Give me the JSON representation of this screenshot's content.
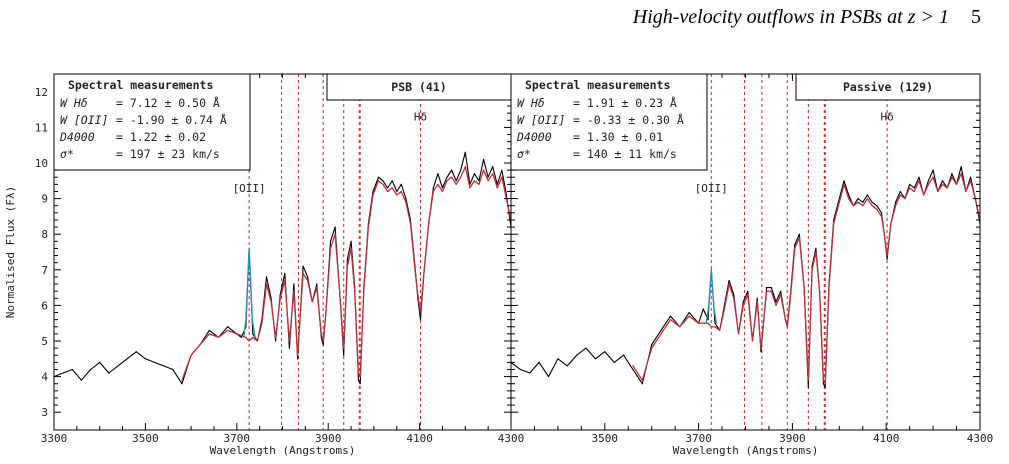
{
  "header": {
    "running_title": "High-velocity outflows in PSBs at z > 1",
    "page_number": "5"
  },
  "chart_data": [
    {
      "type": "line",
      "panel_label": "PSB  (41)",
      "xlabel": "Wavelength (Angstroms)",
      "ylabel": "Normalised Flux (Fλ)",
      "xlim": [
        3300,
        4300
      ],
      "ylim": [
        2.5,
        12.5
      ],
      "x_ticks": [
        "3300",
        "3500",
        "3700",
        "3900",
        "4100",
        "4300"
      ],
      "y_ticks": [
        "3",
        "4",
        "5",
        "6",
        "7",
        "8",
        "9",
        "10",
        "11",
        "12"
      ],
      "measurements": {
        "title": "Spectral measurements",
        "rows": [
          {
            "label": "W Hδ",
            "value": "=  7.12  ± 0.50 Å"
          },
          {
            "label": "W [OII]",
            "value": "= -1.90  ± 0.74 Å"
          },
          {
            "label": "D4000",
            "value": "=  1.22  ± 0.02"
          },
          {
            "label": "σ*",
            "value": "=  197   ± 23 km/s"
          }
        ]
      },
      "line_labels": [
        {
          "text": "[OII]",
          "x": 3727,
          "y": 9.3
        },
        {
          "text": "Hδ",
          "x": 4102,
          "y": 11.3
        }
      ],
      "line_markers": [
        3727,
        3798,
        3835,
        3889,
        3934,
        3968,
        3970,
        4102
      ],
      "series": [
        {
          "color": "#000000",
          "x": [
            3300,
            3320,
            3340,
            3360,
            3380,
            3400,
            3420,
            3440,
            3460,
            3480,
            3500,
            3520,
            3540,
            3560,
            3580,
            3600,
            3620,
            3640,
            3660,
            3680,
            3700,
            3710,
            3720,
            3727,
            3735,
            3745,
            3755,
            3765,
            3775,
            3785,
            3795,
            3805,
            3815,
            3825,
            3833,
            3845,
            3855,
            3865,
            3875,
            3885,
            3889,
            3895,
            3905,
            3915,
            3925,
            3934,
            3942,
            3950,
            3958,
            3966,
            3970,
            3978,
            3988,
            3998,
            4010,
            4020,
            4030,
            4040,
            4050,
            4060,
            4070,
            4080,
            4090,
            4096,
            4102,
            4110,
            4120,
            4130,
            4140,
            4150,
            4160,
            4170,
            4180,
            4190,
            4200,
            4210,
            4220,
            4230,
            4240,
            4250,
            4260,
            4270,
            4280,
            4290,
            4300
          ],
          "y": [
            4.0,
            4.1,
            4.2,
            3.9,
            4.2,
            4.4,
            4.1,
            4.3,
            4.5,
            4.7,
            4.5,
            4.4,
            4.3,
            4.2,
            3.8,
            4.6,
            4.9,
            5.3,
            5.1,
            5.4,
            5.2,
            5.1,
            5.4,
            7.6,
            5.2,
            5.0,
            5.6,
            6.8,
            6.2,
            5.0,
            6.3,
            6.9,
            4.8,
            6.6,
            4.5,
            7.1,
            6.8,
            6.1,
            6.6,
            5.1,
            4.9,
            5.8,
            7.8,
            8.2,
            6.4,
            4.6,
            7.3,
            7.8,
            6.5,
            3.9,
            3.8,
            6.5,
            8.3,
            9.2,
            9.6,
            9.5,
            9.3,
            9.5,
            9.2,
            9.4,
            9.0,
            8.4,
            7.1,
            6.2,
            5.6,
            7.0,
            8.3,
            9.3,
            9.7,
            9.3,
            9.6,
            9.8,
            9.5,
            9.8,
            10.3,
            9.4,
            9.7,
            9.5,
            10.1,
            9.6,
            9.9,
            9.4,
            9.8,
            9.1,
            8.2
          ]
        },
        {
          "color": "#c0303c",
          "x": [
            3580,
            3600,
            3620,
            3640,
            3660,
            3680,
            3700,
            3720,
            3727,
            3735,
            3745,
            3755,
            3765,
            3775,
            3785,
            3795,
            3805,
            3815,
            3825,
            3833,
            3845,
            3855,
            3865,
            3875,
            3885,
            3889,
            3895,
            3905,
            3915,
            3925,
            3934,
            3942,
            3950,
            3958,
            3966,
            3970,
            3978,
            3988,
            3998,
            4010,
            4020,
            4030,
            4040,
            4050,
            4060,
            4070,
            4080,
            4090,
            4096,
            4102,
            4110,
            4120,
            4130,
            4140,
            4150,
            4160,
            4170,
            4180,
            4190,
            4200,
            4210,
            4220,
            4230,
            4240,
            4250,
            4260,
            4270,
            4280,
            4290,
            4300
          ],
          "y": [
            3.9,
            4.6,
            4.9,
            5.2,
            5.1,
            5.3,
            5.2,
            5.1,
            5.0,
            5.1,
            5.0,
            5.5,
            6.6,
            6.1,
            5.1,
            6.2,
            6.7,
            5.0,
            6.4,
            4.6,
            6.9,
            6.7,
            6.1,
            6.5,
            5.2,
            5.0,
            5.8,
            7.6,
            8.0,
            6.4,
            4.8,
            7.1,
            7.6,
            6.4,
            4.1,
            4.0,
            6.4,
            8.2,
            9.1,
            9.5,
            9.4,
            9.2,
            9.3,
            9.1,
            9.2,
            8.9,
            8.3,
            7.0,
            6.3,
            5.8,
            7.0,
            8.3,
            9.2,
            9.4,
            9.2,
            9.5,
            9.6,
            9.4,
            9.6,
            9.9,
            9.3,
            9.5,
            9.4,
            9.8,
            9.5,
            9.7,
            9.3,
            9.6,
            9.0,
            8.4
          ]
        },
        {
          "color": "#2a8fc0",
          "x": [
            3715,
            3720,
            3724,
            3727,
            3730,
            3734,
            3740
          ],
          "y": [
            5.1,
            5.6,
            6.8,
            7.6,
            6.8,
            5.6,
            5.1
          ]
        }
      ]
    },
    {
      "type": "line",
      "panel_label": "Passive  (129)",
      "xlabel": "Wavelength (Angstroms)",
      "ylabel": "",
      "xlim": [
        3300,
        4300
      ],
      "ylim": [
        2.5,
        12.5
      ],
      "x_ticks": [
        "3300",
        "3500",
        "3700",
        "3900",
        "4100",
        "4300"
      ],
      "y_ticks": [],
      "measurements": {
        "title": "Spectral measurements",
        "rows": [
          {
            "label": "W Hδ",
            "value": "=  1.91  ± 0.23 Å"
          },
          {
            "label": "W [OII]",
            "value": "= -0.33  ± 0.30 Å"
          },
          {
            "label": "D4000",
            "value": "=  1.30  ± 0.01"
          },
          {
            "label": "σ*",
            "value": "=  140   ± 11 km/s"
          }
        ]
      },
      "line_labels": [
        {
          "text": "[OII]",
          "x": 3727,
          "y": 9.3
        },
        {
          "text": "Hδ",
          "x": 4102,
          "y": 11.3
        }
      ],
      "line_markers": [
        3727,
        3798,
        3835,
        3889,
        3934,
        3968,
        3970,
        4102
      ],
      "series": [
        {
          "color": "#000000",
          "x": [
            3300,
            3320,
            3340,
            3360,
            3380,
            3400,
            3420,
            3440,
            3460,
            3480,
            3500,
            3520,
            3540,
            3560,
            3580,
            3600,
            3620,
            3640,
            3660,
            3680,
            3700,
            3710,
            3720,
            3727,
            3735,
            3745,
            3755,
            3765,
            3775,
            3785,
            3795,
            3805,
            3815,
            3825,
            3833,
            3845,
            3855,
            3865,
            3875,
            3885,
            3889,
            3895,
            3905,
            3915,
            3925,
            3934,
            3942,
            3950,
            3958,
            3966,
            3970,
            3978,
            3988,
            3998,
            4010,
            4020,
            4030,
            4040,
            4050,
            4060,
            4070,
            4080,
            4090,
            4096,
            4102,
            4110,
            4120,
            4130,
            4140,
            4150,
            4160,
            4170,
            4180,
            4190,
            4200,
            4210,
            4220,
            4230,
            4240,
            4250,
            4260,
            4270,
            4280,
            4290,
            4300
          ],
          "y": [
            4.4,
            4.2,
            4.1,
            4.4,
            4.0,
            4.5,
            4.3,
            4.6,
            4.8,
            4.5,
            4.7,
            4.4,
            4.6,
            4.2,
            3.8,
            4.9,
            5.3,
            5.7,
            5.4,
            5.8,
            5.5,
            5.9,
            5.6,
            7.0,
            5.5,
            5.3,
            6.0,
            6.7,
            6.3,
            5.2,
            6.1,
            6.4,
            5.0,
            6.2,
            4.7,
            6.5,
            6.5,
            6.1,
            6.4,
            5.6,
            5.4,
            6.2,
            7.7,
            8.0,
            6.5,
            3.7,
            7.1,
            7.6,
            6.4,
            3.8,
            3.7,
            6.6,
            8.4,
            8.9,
            9.5,
            9.1,
            8.8,
            9.0,
            8.9,
            9.1,
            8.9,
            8.8,
            8.6,
            8.0,
            7.3,
            8.3,
            8.9,
            9.2,
            9.0,
            9.4,
            9.3,
            9.6,
            9.1,
            9.5,
            9.8,
            9.2,
            9.5,
            9.3,
            9.7,
            9.4,
            9.9,
            9.2,
            9.6,
            9.0,
            8.3
          ]
        },
        {
          "color": "#c0303c",
          "x": [
            3560,
            3580,
            3600,
            3620,
            3640,
            3660,
            3680,
            3700,
            3720,
            3727,
            3735,
            3745,
            3755,
            3765,
            3775,
            3785,
            3795,
            3805,
            3815,
            3825,
            3833,
            3845,
            3855,
            3865,
            3875,
            3885,
            3889,
            3895,
            3905,
            3915,
            3925,
            3934,
            3942,
            3950,
            3958,
            3966,
            3970,
            3978,
            3988,
            3998,
            4010,
            4020,
            4030,
            4040,
            4050,
            4060,
            4070,
            4080,
            4090,
            4096,
            4102,
            4110,
            4120,
            4130,
            4140,
            4150,
            4160,
            4170,
            4180,
            4190,
            4200,
            4210,
            4220,
            4230,
            4240,
            4250,
            4260,
            4270,
            4280,
            4290,
            4300
          ],
          "y": [
            4.3,
            3.9,
            4.8,
            5.2,
            5.6,
            5.4,
            5.7,
            5.5,
            5.5,
            5.4,
            5.4,
            5.3,
            5.9,
            6.6,
            6.2,
            5.2,
            6.0,
            6.3,
            5.0,
            6.1,
            4.8,
            6.4,
            6.4,
            6.0,
            6.3,
            5.6,
            5.4,
            6.1,
            7.6,
            7.9,
            6.5,
            3.9,
            7.0,
            7.5,
            6.4,
            3.9,
            3.8,
            6.5,
            8.3,
            8.8,
            9.4,
            9.0,
            8.8,
            8.9,
            8.8,
            9.0,
            8.8,
            8.7,
            8.5,
            8.0,
            7.4,
            8.3,
            8.8,
            9.1,
            9.0,
            9.3,
            9.2,
            9.5,
            9.1,
            9.4,
            9.6,
            9.2,
            9.4,
            9.3,
            9.6,
            9.4,
            9.7,
            9.2,
            9.5,
            9.0,
            8.4
          ]
        },
        {
          "color": "#2a8fc0",
          "x": [
            3716,
            3721,
            3725,
            3727,
            3729,
            3733,
            3738
          ],
          "y": [
            5.5,
            5.9,
            6.6,
            7.0,
            6.6,
            5.9,
            5.5
          ]
        }
      ]
    }
  ]
}
